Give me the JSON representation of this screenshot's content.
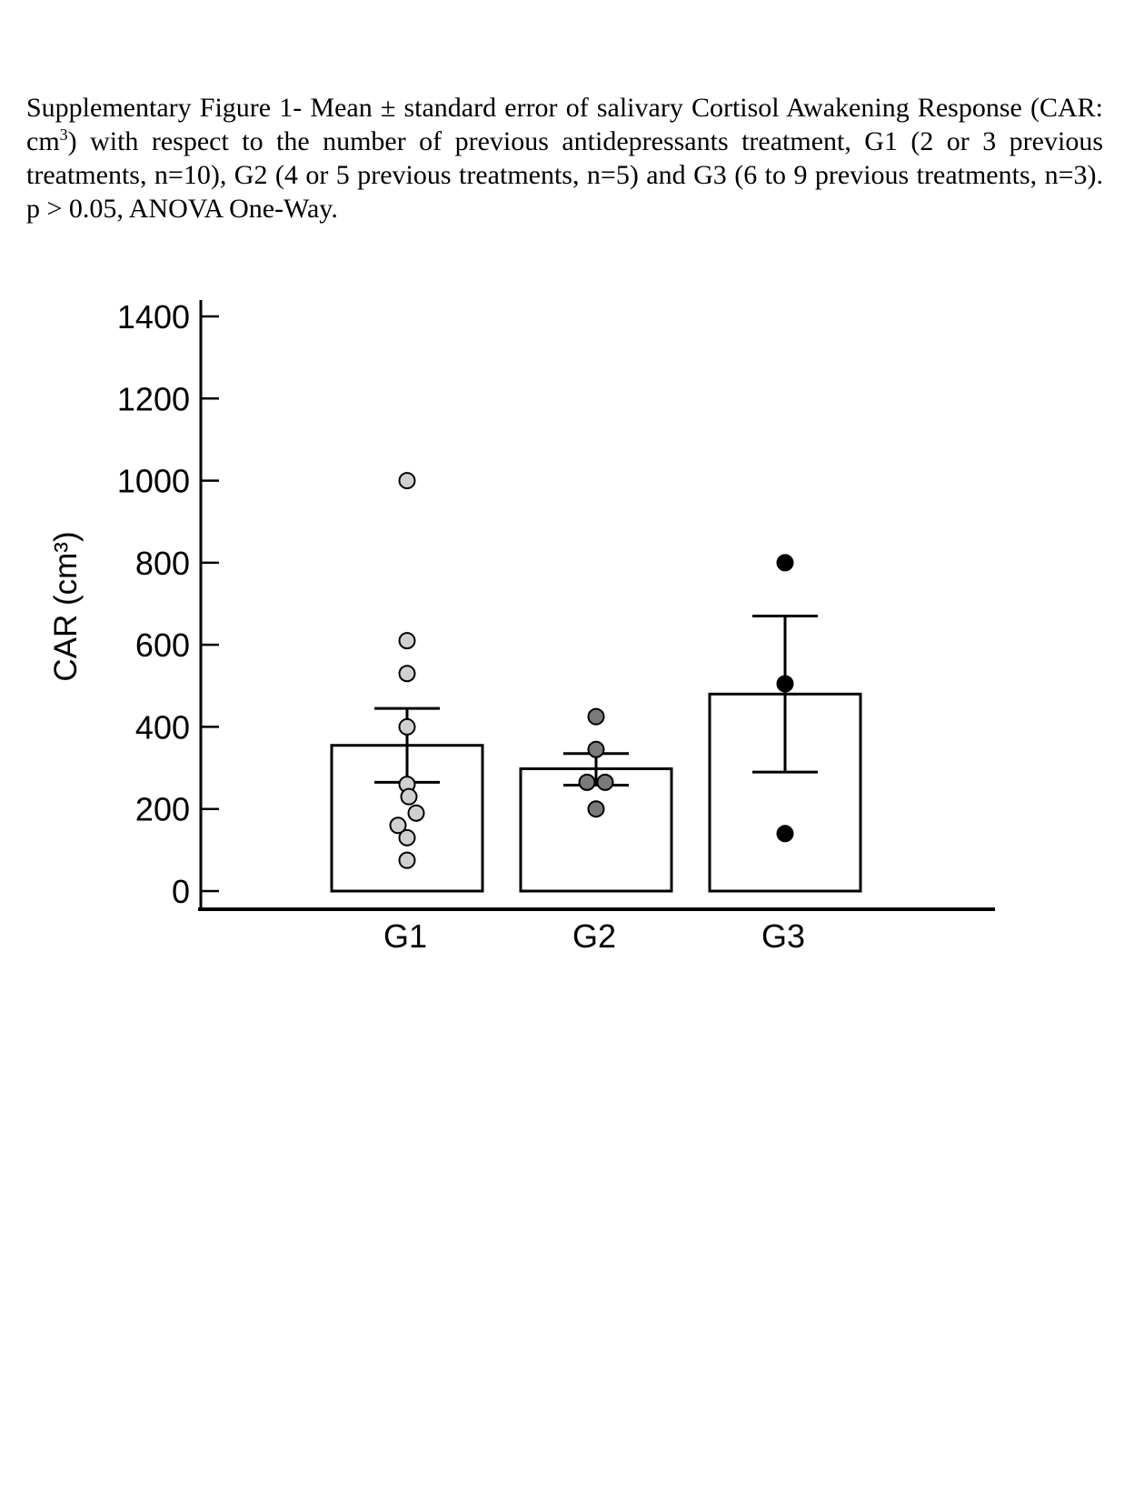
{
  "caption": {
    "part1": "Supplementary Figure 1- Mean ± standard error of salivary Cortisol Awakening Response (CAR: cm",
    "sup": "3",
    "part2": ") with respect to the number of previous antidepressants treatment, G1 (2 or 3 previous treatments, n=10), G2 (4 or 5 previous treatments, n=5) and G3 (6 to 9 previous treatments, n=3). p > 0.05, ANOVA One-Way."
  },
  "chart_data": {
    "type": "bar",
    "ylabel": "CAR (cm³)",
    "xlabel": "",
    "title": "",
    "ylim": [
      0,
      1400
    ],
    "yticks": [
      0,
      200,
      400,
      600,
      800,
      1000,
      1200,
      1400
    ],
    "grid": false,
    "categories": [
      "G1",
      "G2",
      "G3"
    ],
    "values": [
      355,
      298,
      480
    ],
    "error_upper": [
      445,
      335,
      670
    ],
    "error_lower": [
      265,
      258,
      290
    ],
    "points": [
      [
        1000,
        610,
        530,
        400,
        260,
        230,
        190,
        160,
        130,
        75
      ],
      [
        425,
        345,
        265,
        265,
        200
      ],
      [
        800,
        505,
        140
      ]
    ],
    "point_colors": [
      "#d0d0d0",
      "#7a7a7a",
      "#000000"
    ]
  }
}
